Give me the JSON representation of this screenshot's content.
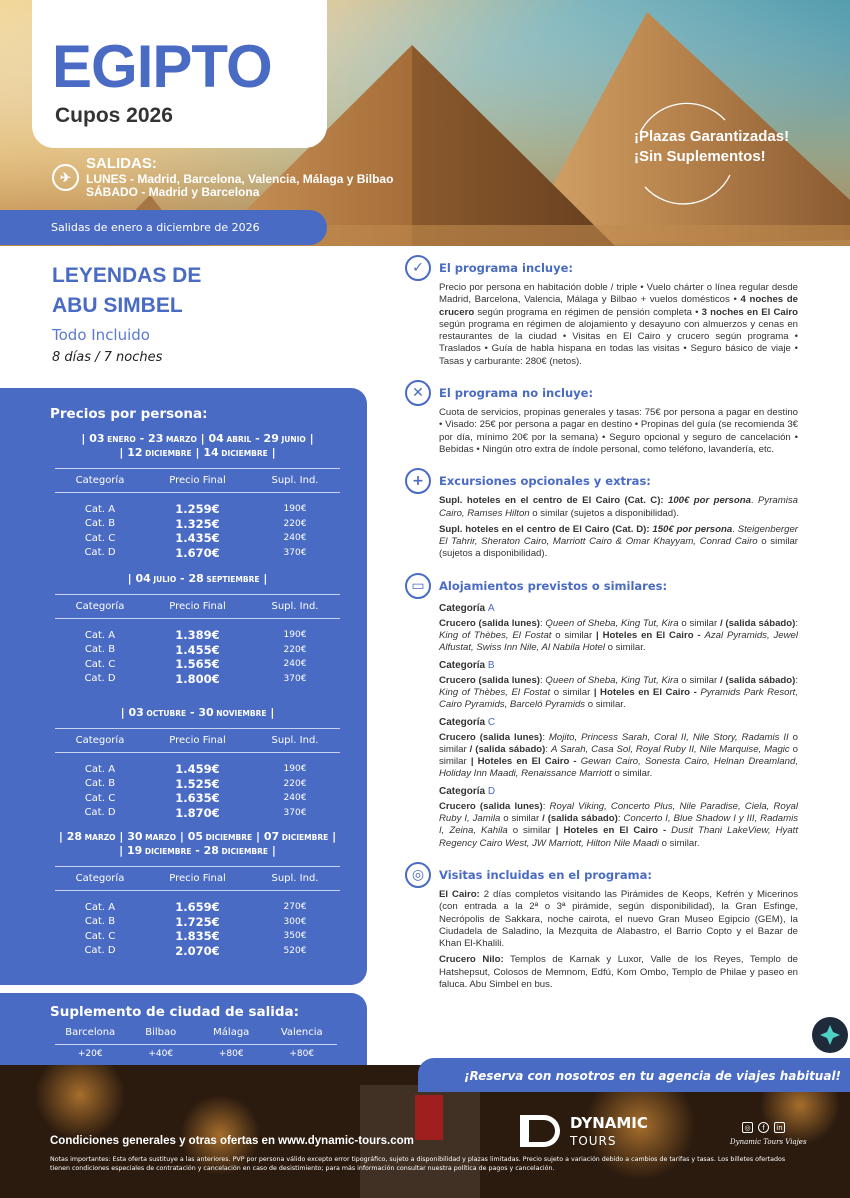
{
  "hero": {
    "title": "EGIPTO",
    "subtitle": "Cupos 2026",
    "departures": {
      "label": "SALIDAS:",
      "monday": "LUNES -  Madrid, Barcelona, Valencia, Málaga y Bilbao",
      "saturday": "SÁBADO -   Madrid y Barcelona"
    },
    "badge": [
      "¡Plazas Garantizadas!",
      "¡Sin Suplementos!"
    ],
    "bar": "Salidas de enero a diciembre de 2026"
  },
  "program": {
    "title_1": "LEYENDAS DE",
    "title_2": "ABU SIMBEL",
    "type": "Todo Incluido",
    "duration": "8 días / 7 noches"
  },
  "prices": {
    "title": "Precios por persona:",
    "headers": [
      "Categoría",
      "Precio Final",
      "Supl. Ind."
    ],
    "sections": [
      {
        "dates": [
          "| 03 ENERO - 23 MARZO | 04 ABRIL - 29 JUNIO |",
          "| 12 DICIEMBRE | 14 DICIEMBRE |"
        ],
        "rows": [
          [
            "Cat. A",
            "1.259€",
            "190€"
          ],
          [
            "Cat. B",
            "1.325€",
            "220€"
          ],
          [
            "Cat. C",
            "1.435€",
            "240€"
          ],
          [
            "Cat. D",
            "1.670€",
            "370€"
          ]
        ]
      },
      {
        "dates": [
          "| 04 JULIO - 28 SEPTIEMBRE |"
        ],
        "rows": [
          [
            "Cat. A",
            "1.389€",
            "190€"
          ],
          [
            "Cat. B",
            "1.455€",
            "220€"
          ],
          [
            "Cat. C",
            "1.565€",
            "240€"
          ],
          [
            "Cat. D",
            "1.800€",
            "370€"
          ]
        ]
      },
      {
        "dates": [
          "| 03 OCTUBRE - 30 NOVIEMBRE |"
        ],
        "rows": [
          [
            "Cat. A",
            "1.459€",
            "190€"
          ],
          [
            "Cat. B",
            "1.525€",
            "220€"
          ],
          [
            "Cat. C",
            "1.635€",
            "240€"
          ],
          [
            "Cat. D",
            "1.870€",
            "370€"
          ]
        ]
      },
      {
        "dates": [
          "| 28 MARZO | 30 MARZO | 05 DICIEMBRE | 07 DICIEMBRE |",
          "| 19 DICIEMBRE - 28 DICIEMBRE |"
        ],
        "rows": [
          [
            "Cat. A",
            "1.659€",
            "270€"
          ],
          [
            "Cat. B",
            "1.725€",
            "300€"
          ],
          [
            "Cat. C",
            "1.835€",
            "350€"
          ],
          [
            "Cat. D",
            "2.070€",
            "520€"
          ]
        ]
      }
    ]
  },
  "supplement": {
    "title": "Suplemento de ciudad de salida:",
    "cities": [
      "Barcelona",
      "Bilbao",
      "Málaga",
      "Valencia"
    ],
    "values": [
      "+20€",
      "+40€",
      "+80€",
      "+80€"
    ]
  },
  "sections": {
    "includes": {
      "icon": "check-circle-icon",
      "title": "El programa incluye:",
      "paras": [
        [
          {
            "t": "Precio por persona en habitación doble / triple  •  Vuelo chárter o línea regular desde Madrid, Barcelona, Valencia, Málaga y Bilbao + vuelos domésticos  •  "
          },
          {
            "t": "4 noches de crucero",
            "b": 1
          },
          {
            "t": " según programa en régimen de pensión completa  •  "
          },
          {
            "t": "3 noches en El Cairo",
            "b": 1
          },
          {
            "t": " según programa en régimen de alojamiento y desayuno con almuerzos y cenas en restaurantes de la ciudad • Visitas en El Cairo y crucero según programa • Traslados • Guía de habla hispana en todas las visitas • Seguro básico de viaje • Tasas y carburante: 280€ (netos)."
          }
        ]
      ]
    },
    "excludes": {
      "icon": "x-circle-icon",
      "title": "El programa no incluye:",
      "paras": [
        [
          {
            "t": "Cuota de servicios, propinas generales y tasas: 75€ por persona a pagar en destino • Visado: 25€ por persona a pagar en destino • Propinas del guía (se recomienda 3€ por día, mínimo 20€ por la semana) • Seguro opcional y seguro de cancelación • Bebidas • Ningún otro extra de índole personal, como teléfono, lavandería, etc."
          }
        ]
      ]
    },
    "extras": {
      "icon": "plus-circle-icon",
      "title": "Excursiones opcionales y extras:",
      "paras": [
        [
          {
            "t": "Supl. hoteles en el centro de El Cairo (Cat. C): ",
            "b": 1
          },
          {
            "t": "100€ por persona",
            "b": 1,
            "i": 1
          },
          {
            "t": ". "
          },
          {
            "t": "Pyramisa Cairo, Ramses Hilton",
            "i": 1
          },
          {
            "t": " o similar (sujetos a disponibilidad)."
          }
        ],
        [
          {
            "t": "Supl. hoteles en el centro de El Cairo (Cat. D): ",
            "b": 1
          },
          {
            "t": "150€ por persona",
            "b": 1,
            "i": 1
          },
          {
            "t": ". "
          },
          {
            "t": "Steigenberger El Tahrir, Sheraton Cairo, Marriott Cairo & Omar Khayyam, Conrad Cairo",
            "i": 1
          },
          {
            "t": " o similar (sujetos a disponibilidad)."
          }
        ]
      ]
    },
    "hotels": {
      "icon": "bed-icon",
      "title": "Alojamientos previstos o similares:",
      "cat_label": "Categoría",
      "cats": [
        {
          "letter": "A",
          "runs": [
            {
              "t": "Crucero (salida lunes)",
              "b": 1
            },
            {
              "t": ": "
            },
            {
              "t": "Queen of Sheba, King Tut, Kira",
              "i": 1
            },
            {
              "t": " o similar "
            },
            {
              "t": "/ (salida sábado)",
              "b": 1
            },
            {
              "t": ": "
            },
            {
              "t": "King of Thèbes, El Fostat",
              "i": 1
            },
            {
              "t": " o similar "
            },
            {
              "t": "| Hoteles en El Cairo - ",
              "b": 1
            },
            {
              "t": "Azal Pyramids, Jewel Alfustat, Swiss Inn Nile, Al Nabila Hotel",
              "i": 1
            },
            {
              "t": " o similar."
            }
          ]
        },
        {
          "letter": "B",
          "runs": [
            {
              "t": "Crucero (salida lunes)",
              "b": 1
            },
            {
              "t": ": "
            },
            {
              "t": "Queen of Sheba, King Tut, Kira",
              "i": 1
            },
            {
              "t": " o similar "
            },
            {
              "t": "/ (salida sábado)",
              "b": 1
            },
            {
              "t": ": "
            },
            {
              "t": "King of Thèbes, El Fostat",
              "i": 1
            },
            {
              "t": " o similar "
            },
            {
              "t": "| Hoteles en El Cairo - ",
              "b": 1
            },
            {
              "t": "Pyramids Park Resort, Cairo Pyramids, Barceló Pyramids",
              "i": 1
            },
            {
              "t": " o similar."
            }
          ]
        },
        {
          "letter": "C",
          "runs": [
            {
              "t": "Crucero (salida lunes)",
              "b": 1
            },
            {
              "t": ": "
            },
            {
              "t": "Mojito, Princess Sarah, Coral II, Nile Story, Radamis II",
              "i": 1
            },
            {
              "t": " o similar "
            },
            {
              "t": "/ (salida sábado)",
              "b": 1
            },
            {
              "t": ": "
            },
            {
              "t": "A Sarah, Casa Sol, Royal Ruby II, Nile Marquise, Magic",
              "i": 1
            },
            {
              "t": " o similar "
            },
            {
              "t": "| Hoteles en El Cairo - ",
              "b": 1
            },
            {
              "t": "Gewan Cairo, Sonesta Cairo, Helnan Dreamland, Holiday Inn Maadi, Renaissance Marriott",
              "i": 1
            },
            {
              "t": " o similar."
            }
          ]
        },
        {
          "letter": "D",
          "runs": [
            {
              "t": "Crucero (salida lunes)",
              "b": 1
            },
            {
              "t": ": "
            },
            {
              "t": "Royal Viking, Concerto Plus, Nile Paradise, Ciela, Royal Ruby I, Jamila",
              "i": 1
            },
            {
              "t": " o similar "
            },
            {
              "t": "/ (salida sábado)",
              "b": 1
            },
            {
              "t": ": "
            },
            {
              "t": "Concerto I, Blue Shadow I y III, Radamis I, Zeina, Kahila",
              "i": 1
            },
            {
              "t": " o similar "
            },
            {
              "t": "| Hoteles en El Cairo - ",
              "b": 1
            },
            {
              "t": "Dusit Thani LakeView, Hyatt Regency Cairo West, JW Marriott, Hilton Nile Maadi",
              "i": 1
            },
            {
              "t": " o similar."
            }
          ]
        }
      ]
    },
    "visits": {
      "icon": "location-pin-icon",
      "title": "Visitas incluidas en el programa:",
      "paras": [
        [
          {
            "t": "El Cairo:",
            "b": 1
          },
          {
            "t": " 2 días completos visitando las Pirámides de Keops, Kefrén y Micerinos (con entrada a la 2ª o 3ª pirámide, según disponibilidad), la Gran Esfinge, Necrópolis de Sakkara, noche cairota, el nuevo Gran Museo Egipcio (GEM), la Ciudadela de Saladino, la Mezquita de Alabastro, el Barrio Copto y el Bazar de Khan El-Khalili."
          }
        ],
        [
          {
            "t": "Crucero Nilo:",
            "b": 1
          },
          {
            "t": " Templos de Karnak y Luxor, Valle de los Reyes, Templo de Hatshepsut, Colosos de Memnom, Edfú, Kom Ombo, Templo de Philae y paseo en faluca. Abu Simbel en bus."
          }
        ]
      ]
    }
  },
  "footer": {
    "ribbon": "¡Reserva con nosotros en tu agencia de viajes habitual!",
    "conditions": "Condiciones generales y otras ofertas en www.dynamic-tours.com",
    "notes": "Notas importantes: Esta oferta sustituye a las anteriores. PVP por persona válido excepto error tipográfico, sujeto a disponibilidad y plazas limitadas. Precio sujeto a variación debido a cambios de tarifas y tasas. Los billetes ofertados tienen condiciones especiales de contratación y cancelación en caso de desistimiento; para más información consultar nuestra política de pagos y cancelación.",
    "logo": {
      "line1": "DYNAMIC",
      "line2": "TOURS"
    },
    "social": [
      "instagram-icon",
      "facebook-icon",
      "linkedin-icon"
    ],
    "social_handle": "Dynamic Tours Viajes"
  },
  "colors": {
    "brand_blue": "#4A6BC4",
    "text": "#333333"
  }
}
